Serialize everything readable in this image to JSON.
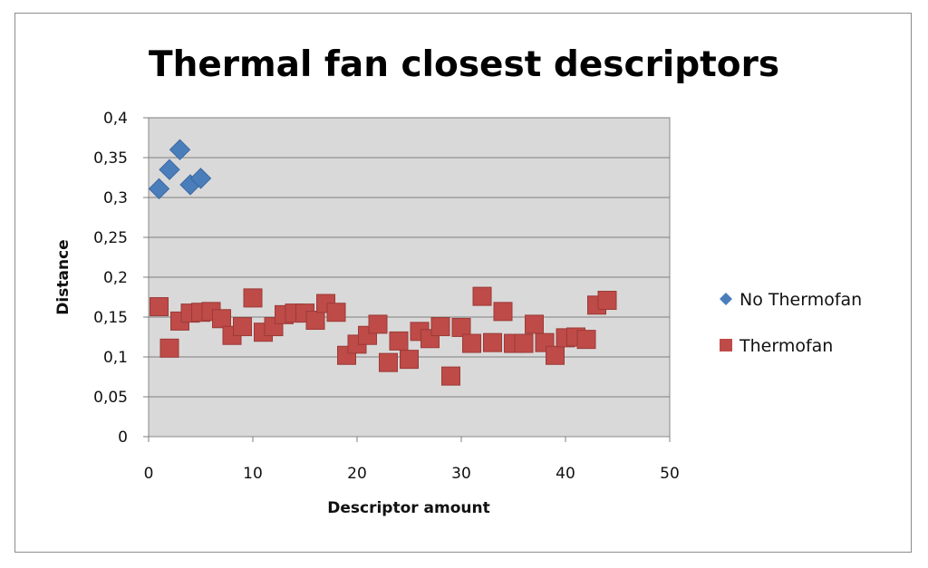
{
  "chart_data": {
    "type": "scatter",
    "title": "Thermal fan closest descriptors",
    "xlabel": "Descriptor amount",
    "ylabel": "Distance",
    "xlim": [
      0,
      50
    ],
    "ylim": [
      0,
      0.4
    ],
    "x_ticks": [
      "0",
      "10",
      "20",
      "30",
      "40",
      "50"
    ],
    "y_ticks": [
      "0",
      "0,05",
      "0,1",
      "0,15",
      "0,2",
      "0,25",
      "0,3",
      "0,35",
      "0,4"
    ],
    "grid": "horizontal",
    "legend_position": "right",
    "plot_background": "#d9d9d9",
    "series": [
      {
        "name": "No Thermofan",
        "marker": "diamond",
        "color": "#4a7ebb",
        "x": [
          1,
          2,
          3,
          4,
          5
        ],
        "y": [
          0.311,
          0.335,
          0.36,
          0.316,
          0.324
        ]
      },
      {
        "name": "Thermofan",
        "marker": "square",
        "color": "#be4b48",
        "x": [
          1,
          2,
          3,
          4,
          5,
          6,
          7,
          8,
          9,
          10,
          11,
          12,
          13,
          14,
          15,
          16,
          17,
          18,
          19,
          20,
          21,
          22,
          23,
          24,
          25,
          26,
          27,
          28,
          29,
          30,
          31,
          32,
          33,
          34,
          35,
          36,
          37,
          38,
          39,
          40,
          41,
          42,
          43,
          44
        ],
        "y": [
          0.163,
          0.111,
          0.145,
          0.155,
          0.156,
          0.157,
          0.148,
          0.127,
          0.138,
          0.174,
          0.131,
          0.138,
          0.153,
          0.155,
          0.155,
          0.146,
          0.167,
          0.156,
          0.102,
          0.116,
          0.127,
          0.141,
          0.093,
          0.12,
          0.097,
          0.132,
          0.123,
          0.138,
          0.076,
          0.137,
          0.117,
          0.176,
          0.118,
          0.157,
          0.117,
          0.117,
          0.141,
          0.118,
          0.102,
          0.124,
          0.125,
          0.122,
          0.165,
          0.171
        ]
      }
    ]
  }
}
